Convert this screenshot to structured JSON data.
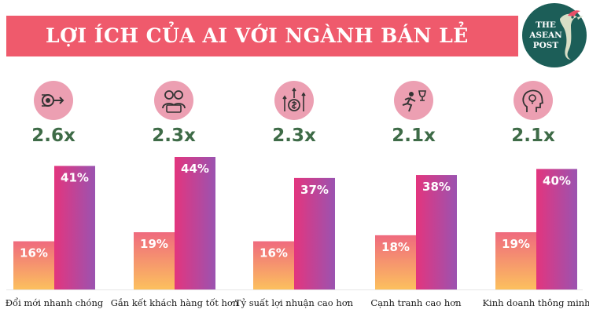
{
  "header": {
    "title": "LỢI ÍCH CỦA AI VỚI NGÀNH BÁN LẺ"
  },
  "logo": {
    "line1": "THE",
    "line2": "ASEAN",
    "line3": "POST"
  },
  "benefits": [
    {
      "icon": "innovation-arrow-icon",
      "multiplier": "2.6x"
    },
    {
      "icon": "customer-engagement-icon",
      "multiplier": "2.3x"
    },
    {
      "icon": "profit-growth-icon",
      "multiplier": "2.3x"
    },
    {
      "icon": "runner-trophy-icon",
      "multiplier": "2.1x"
    },
    {
      "icon": "head-lightbulb-icon",
      "multiplier": "2.1x"
    }
  ],
  "chart_data": {
    "type": "bar",
    "categories": [
      "Đổi mới nhanh chóng",
      "Gắn kết khách hàng tốt hơn",
      "Tỷ suất lợi nhuận cao hơn",
      "Cạnh tranh cao hơn",
      "Kinh doanh thông minh"
    ],
    "series": [
      {
        "values": [
          16,
          19,
          16,
          18,
          19
        ]
      },
      {
        "values": [
          41,
          44,
          37,
          38,
          40
        ]
      }
    ],
    "value_labels_1": [
      "16%",
      "19%",
      "16%",
      "18%",
      "19%"
    ],
    "value_labels_2": [
      "41%",
      "44%",
      "37%",
      "38%",
      "40%"
    ],
    "ylim": [
      0,
      44
    ],
    "colors": {
      "series1_top": "#ef6a7e",
      "series1_bottom": "#fcc05e",
      "series2_top": "#9b53b0",
      "series2_bottom": "#e3357e",
      "accent": "#ef5a6c",
      "logo": "#1c5e58",
      "multiplier": "#3e6b47",
      "icon_bg": "#ec9fb2"
    }
  }
}
